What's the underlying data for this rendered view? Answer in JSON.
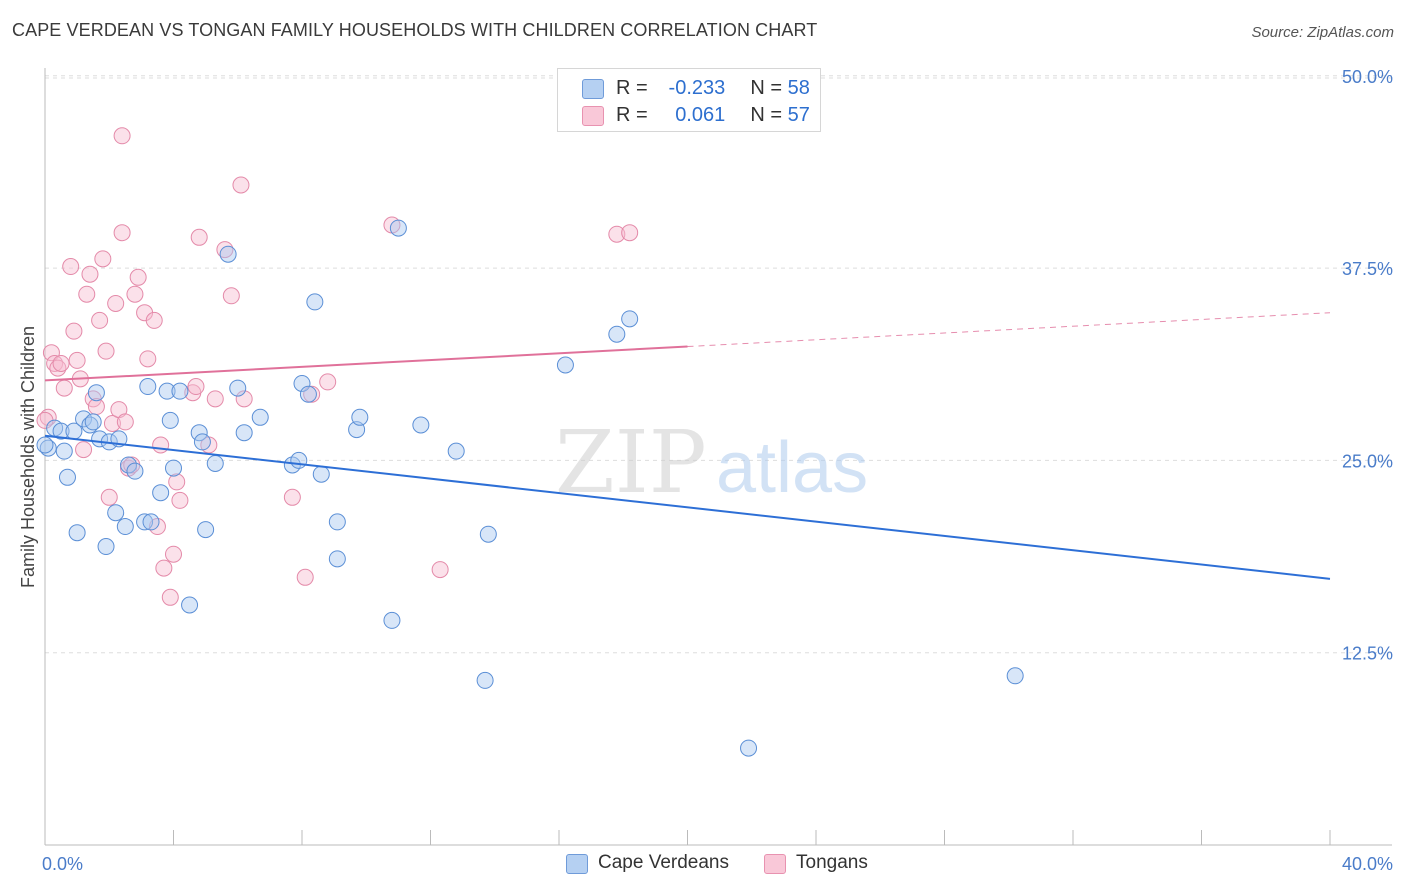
{
  "title": "CAPE VERDEAN VS TONGAN FAMILY HOUSEHOLDS WITH CHILDREN CORRELATION CHART",
  "source": "Source: ZipAtlas.com",
  "watermark": {
    "zip": "ZIP",
    "atlas": "atlas"
  },
  "colors": {
    "blue_fill": "#a9c8ef",
    "blue_stroke": "#5b8fd6",
    "blue_line": "#2d6fd6",
    "pink_fill": "#f6bcd0",
    "pink_stroke": "#e48aa9",
    "pink_line": "#e0719a",
    "grid": "#dddddd",
    "tick_text": "#4a7cc9"
  },
  "legend": {
    "rows": [
      {
        "r_label": "R =",
        "r_value": "-0.233",
        "n_label": "N =",
        "n_value": "58"
      },
      {
        "r_label": "R =",
        "r_value": "0.061",
        "n_label": "N =",
        "n_value": "57"
      }
    ]
  },
  "bottom_legend": {
    "cape_verdeans": "Cape Verdeans",
    "tongans": "Tongans"
  },
  "chart_data": {
    "type": "scatter",
    "title": "CAPE VERDEAN VS TONGAN FAMILY HOUSEHOLDS WITH CHILDREN CORRELATION CHART",
    "xlabel": "",
    "ylabel": "Family Households with Children",
    "xlim": [
      0,
      40
    ],
    "ylim": [
      0,
      52
    ],
    "x_tick_labels": [
      "0.0%",
      "40.0%"
    ],
    "y_tick_labels": [
      "12.5%",
      "25.0%",
      "37.5%",
      "50.0%"
    ],
    "y_ticks": [
      12.5,
      25.0,
      37.5,
      50.0
    ],
    "grid": true,
    "legend_position": "top-center",
    "series": [
      {
        "name": "Cape Verdeans",
        "trend": {
          "x": [
            0,
            40
          ],
          "y": [
            26.6,
            17.3
          ],
          "style": "solid"
        },
        "points": [
          [
            0.1,
            25.8
          ],
          [
            0.3,
            27.1
          ],
          [
            0.5,
            26.9
          ],
          [
            0.6,
            25.6
          ],
          [
            0.7,
            23.9
          ],
          [
            0.9,
            26.9
          ],
          [
            1.0,
            20.3
          ],
          [
            1.2,
            27.7
          ],
          [
            1.4,
            27.3
          ],
          [
            1.5,
            27.5
          ],
          [
            1.6,
            29.4
          ],
          [
            1.7,
            26.4
          ],
          [
            1.9,
            19.4
          ],
          [
            2.0,
            26.2
          ],
          [
            2.2,
            21.6
          ],
          [
            2.3,
            26.4
          ],
          [
            2.5,
            20.7
          ],
          [
            2.6,
            24.7
          ],
          [
            2.8,
            24.3
          ],
          [
            3.1,
            21.0
          ],
          [
            3.2,
            29.8
          ],
          [
            3.3,
            21.0
          ],
          [
            3.6,
            22.9
          ],
          [
            3.8,
            29.5
          ],
          [
            3.9,
            27.6
          ],
          [
            4.0,
            24.5
          ],
          [
            4.2,
            29.5
          ],
          [
            4.5,
            15.6
          ],
          [
            4.8,
            26.8
          ],
          [
            4.9,
            26.2
          ],
          [
            5.0,
            20.5
          ],
          [
            5.3,
            24.8
          ],
          [
            5.7,
            38.4
          ],
          [
            6.0,
            29.7
          ],
          [
            6.2,
            26.8
          ],
          [
            6.7,
            27.8
          ],
          [
            7.7,
            24.7
          ],
          [
            7.9,
            25.0
          ],
          [
            8.0,
            30.0
          ],
          [
            8.2,
            29.3
          ],
          [
            8.4,
            35.3
          ],
          [
            8.6,
            24.1
          ],
          [
            9.1,
            21.0
          ],
          [
            9.1,
            18.6
          ],
          [
            9.7,
            27.0
          ],
          [
            9.8,
            27.8
          ],
          [
            10.8,
            14.6
          ],
          [
            11.0,
            40.1
          ],
          [
            11.7,
            27.3
          ],
          [
            12.8,
            25.6
          ],
          [
            13.7,
            10.7
          ],
          [
            13.8,
            20.2
          ],
          [
            16.2,
            31.2
          ],
          [
            17.8,
            33.2
          ],
          [
            18.2,
            34.2
          ],
          [
            21.9,
            6.3
          ],
          [
            30.2,
            11.0
          ],
          [
            0.0,
            26.0
          ]
        ]
      },
      {
        "name": "Tongans",
        "trend": {
          "x": [
            0,
            40
          ],
          "y": [
            30.2,
            34.6
          ],
          "style": "solid-to-dashed",
          "solid_until_x": 20
        },
        "points": [
          [
            0.1,
            27.8
          ],
          [
            0.2,
            32.0
          ],
          [
            0.3,
            31.3
          ],
          [
            0.4,
            31.0
          ],
          [
            0.5,
            31.3
          ],
          [
            0.6,
            29.7
          ],
          [
            0.8,
            37.6
          ],
          [
            0.9,
            33.4
          ],
          [
            1.0,
            31.5
          ],
          [
            1.1,
            30.3
          ],
          [
            1.2,
            25.7
          ],
          [
            1.3,
            35.8
          ],
          [
            1.4,
            37.1
          ],
          [
            1.5,
            29.0
          ],
          [
            1.6,
            28.5
          ],
          [
            1.7,
            34.1
          ],
          [
            1.8,
            38.1
          ],
          [
            1.9,
            32.1
          ],
          [
            2.0,
            22.6
          ],
          [
            2.1,
            27.4
          ],
          [
            2.2,
            35.2
          ],
          [
            2.3,
            28.3
          ],
          [
            2.4,
            39.8
          ],
          [
            2.5,
            27.5
          ],
          [
            2.6,
            24.5
          ],
          [
            2.7,
            24.7
          ],
          [
            2.8,
            35.8
          ],
          [
            2.9,
            36.9
          ],
          [
            3.1,
            34.6
          ],
          [
            3.2,
            31.6
          ],
          [
            3.4,
            34.1
          ],
          [
            3.5,
            20.7
          ],
          [
            3.6,
            26.0
          ],
          [
            3.7,
            18.0
          ],
          [
            3.9,
            16.1
          ],
          [
            4.0,
            18.9
          ],
          [
            4.1,
            23.6
          ],
          [
            4.2,
            22.4
          ],
          [
            4.6,
            29.4
          ],
          [
            4.7,
            29.8
          ],
          [
            4.8,
            39.5
          ],
          [
            5.1,
            26.0
          ],
          [
            5.3,
            29.0
          ],
          [
            5.6,
            38.7
          ],
          [
            5.8,
            35.7
          ],
          [
            6.1,
            42.9
          ],
          [
            6.2,
            29.0
          ],
          [
            2.4,
            46.1
          ],
          [
            7.7,
            22.6
          ],
          [
            8.1,
            17.4
          ],
          [
            8.3,
            29.3
          ],
          [
            8.8,
            30.1
          ],
          [
            10.8,
            40.3
          ],
          [
            12.3,
            17.9
          ],
          [
            17.8,
            39.7
          ],
          [
            18.2,
            39.8
          ],
          [
            0.0,
            27.6
          ]
        ]
      }
    ]
  }
}
